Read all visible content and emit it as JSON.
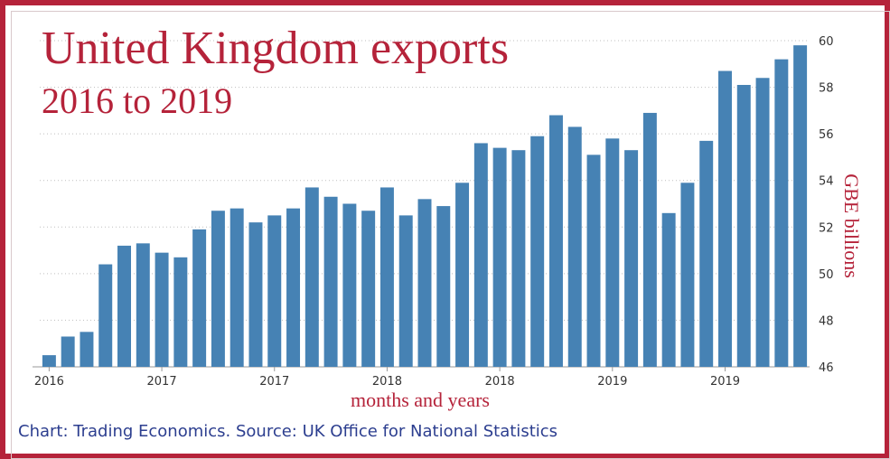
{
  "title": "United Kingdom exports",
  "subtitle": "2016 to 2019",
  "source": "Chart: Trading Economics. Source: UK Office for National Statistics",
  "colors": {
    "accent": "#b5233a",
    "bar": "#4682b4",
    "source_text": "#2c3e8f"
  },
  "chart_data": {
    "type": "bar",
    "title": "United Kingdom exports",
    "subtitle": "2016 to 2019",
    "xlabel": "months and years",
    "ylabel": "GBE billions",
    "ylim": [
      46,
      60
    ],
    "yticks": [
      46,
      48,
      50,
      52,
      54,
      56,
      58,
      60
    ],
    "y_axis_side": "right",
    "grid": "horizontal dotted",
    "x_tick_labels": [
      "2016",
      "2017",
      "2017",
      "2018",
      "2018",
      "2019",
      "2019"
    ],
    "values": [
      46.5,
      47.3,
      47.5,
      50.4,
      51.2,
      51.3,
      50.9,
      50.7,
      51.9,
      52.7,
      52.8,
      52.2,
      52.5,
      52.8,
      53.7,
      53.3,
      53.0,
      52.7,
      53.7,
      52.5,
      53.2,
      52.9,
      53.9,
      55.6,
      55.4,
      55.3,
      55.9,
      56.8,
      56.3,
      55.1,
      55.8,
      55.3,
      56.9,
      52.6,
      53.9,
      55.7,
      58.7,
      58.1,
      58.4,
      59.2,
      59.8
    ]
  }
}
